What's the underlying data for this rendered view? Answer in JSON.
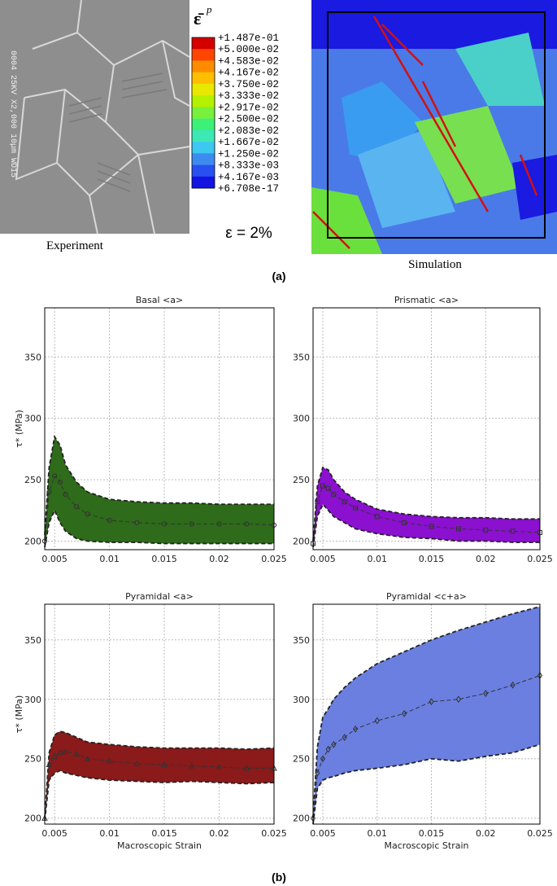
{
  "panel_a": {
    "micrograph_text": "0004 25KV X2,000 10μm WD15",
    "experiment_caption": "Experiment",
    "simulation_caption": "Simulation",
    "colorbar_symbol": "ε̄",
    "colorbar_superscript": "p",
    "colorbar_labels": [
      "+1.487e-01",
      "+5.000e-02",
      "+4.583e-02",
      "+4.167e-02",
      "+3.750e-02",
      "+3.333e-02",
      "+2.917e-02",
      "+2.500e-02",
      "+2.083e-02",
      "+1.667e-02",
      "+1.250e-02",
      "+8.333e-03",
      "+4.167e-03",
      "+6.708e-17"
    ],
    "colorbar_colors": [
      "#d40000",
      "#ff4500",
      "#ff8c00",
      "#ffbf00",
      "#e8e800",
      "#b4f000",
      "#78f03c",
      "#3cf078",
      "#3ce8b4",
      "#3cc8f0",
      "#3c8cf0",
      "#2850f0",
      "#1414e0"
    ],
    "strain_label": "ε = 2%",
    "label": "(a)"
  },
  "panel_b_label": "(b)",
  "chart_data": [
    {
      "type": "band",
      "title": "Basal <a>",
      "ylabel": "τ* (MPa)",
      "marker": "circle",
      "color": "#2e6b1a",
      "grid": true,
      "x": [
        0.0041,
        0.0045,
        0.005,
        0.0055,
        0.006,
        0.007,
        0.008,
        0.01,
        0.0125,
        0.015,
        0.0175,
        0.02,
        0.0225,
        0.025
      ],
      "upper": [
        205,
        260,
        285,
        278,
        262,
        248,
        240,
        234,
        232,
        231,
        231,
        230,
        230,
        230
      ],
      "values": [
        200,
        240,
        253,
        248,
        238,
        228,
        222,
        217,
        215,
        214,
        214,
        214,
        214,
        213
      ],
      "lower": [
        195,
        215,
        225,
        215,
        208,
        202,
        200,
        199,
        199,
        198,
        198,
        198,
        198,
        198
      ],
      "xlim": [
        0.0041,
        0.025
      ],
      "ylim": [
        193,
        390
      ],
      "xticks": [
        0.005,
        0.01,
        0.015,
        0.02,
        0.025
      ],
      "yticks": [
        200,
        250,
        300,
        350
      ]
    },
    {
      "type": "band",
      "title": "Prismatic <a>",
      "marker": "square",
      "color": "#8b10d0",
      "grid": true,
      "x": [
        0.0041,
        0.0045,
        0.005,
        0.0055,
        0.006,
        0.007,
        0.008,
        0.01,
        0.0125,
        0.015,
        0.0175,
        0.02,
        0.0225,
        0.025
      ],
      "upper": [
        200,
        245,
        260,
        258,
        250,
        240,
        234,
        226,
        222,
        220,
        219,
        219,
        218,
        218
      ],
      "values": [
        198,
        232,
        245,
        243,
        238,
        232,
        227,
        220,
        215,
        212,
        210,
        209,
        208,
        207
      ],
      "lower": [
        195,
        220,
        230,
        225,
        220,
        215,
        210,
        206,
        203,
        202,
        200,
        200,
        199,
        199
      ],
      "xlim": [
        0.0041,
        0.025
      ],
      "ylim": [
        193,
        390
      ],
      "xticks": [
        0.005,
        0.01,
        0.015,
        0.02,
        0.025
      ],
      "yticks": [
        200,
        250,
        300,
        350
      ]
    },
    {
      "type": "band",
      "title": "Pyramidal <a>",
      "ylabel": "τ* (MPa)",
      "xlabel": "Macroscopic Strain",
      "marker": "triangle",
      "color": "#8b1a1a",
      "grid": true,
      "x": [
        0.0041,
        0.0045,
        0.005,
        0.0055,
        0.006,
        0.007,
        0.008,
        0.01,
        0.0125,
        0.015,
        0.0175,
        0.02,
        0.0225,
        0.025
      ],
      "upper": [
        200,
        255,
        270,
        273,
        272,
        268,
        264,
        262,
        260,
        259,
        259,
        259,
        258,
        259
      ],
      "values": [
        200,
        245,
        252,
        255,
        256,
        254,
        250,
        248,
        246,
        245,
        244,
        243,
        242,
        242
      ],
      "lower": [
        198,
        232,
        238,
        240,
        238,
        236,
        234,
        232,
        231,
        230,
        231,
        230,
        229,
        230
      ],
      "xlim": [
        0.0041,
        0.025
      ],
      "ylim": [
        195,
        380
      ],
      "xticks": [
        0.005,
        0.01,
        0.015,
        0.02,
        0.025
      ],
      "yticks": [
        200,
        250,
        300,
        350
      ]
    },
    {
      "type": "band",
      "title": "Pyramidal <c+a>",
      "xlabel": "Macroscopic Strain",
      "marker": "diamond",
      "color": "#6a7fe0",
      "grid": true,
      "x": [
        0.0041,
        0.0045,
        0.005,
        0.0055,
        0.006,
        0.007,
        0.008,
        0.01,
        0.0125,
        0.015,
        0.0175,
        0.02,
        0.0225,
        0.025
      ],
      "upper": [
        200,
        260,
        285,
        292,
        300,
        310,
        318,
        330,
        340,
        350,
        358,
        365,
        372,
        378
      ],
      "values": [
        200,
        238,
        250,
        258,
        262,
        268,
        275,
        282,
        288,
        298,
        300,
        305,
        312,
        320
      ],
      "lower": [
        195,
        225,
        232,
        234,
        235,
        238,
        240,
        242,
        245,
        250,
        248,
        252,
        255,
        262
      ],
      "xlim": [
        0.0041,
        0.025
      ],
      "ylim": [
        195,
        380
      ],
      "xticks": [
        0.005,
        0.01,
        0.015,
        0.02,
        0.025
      ],
      "yticks": [
        200,
        250,
        300,
        350
      ]
    }
  ]
}
